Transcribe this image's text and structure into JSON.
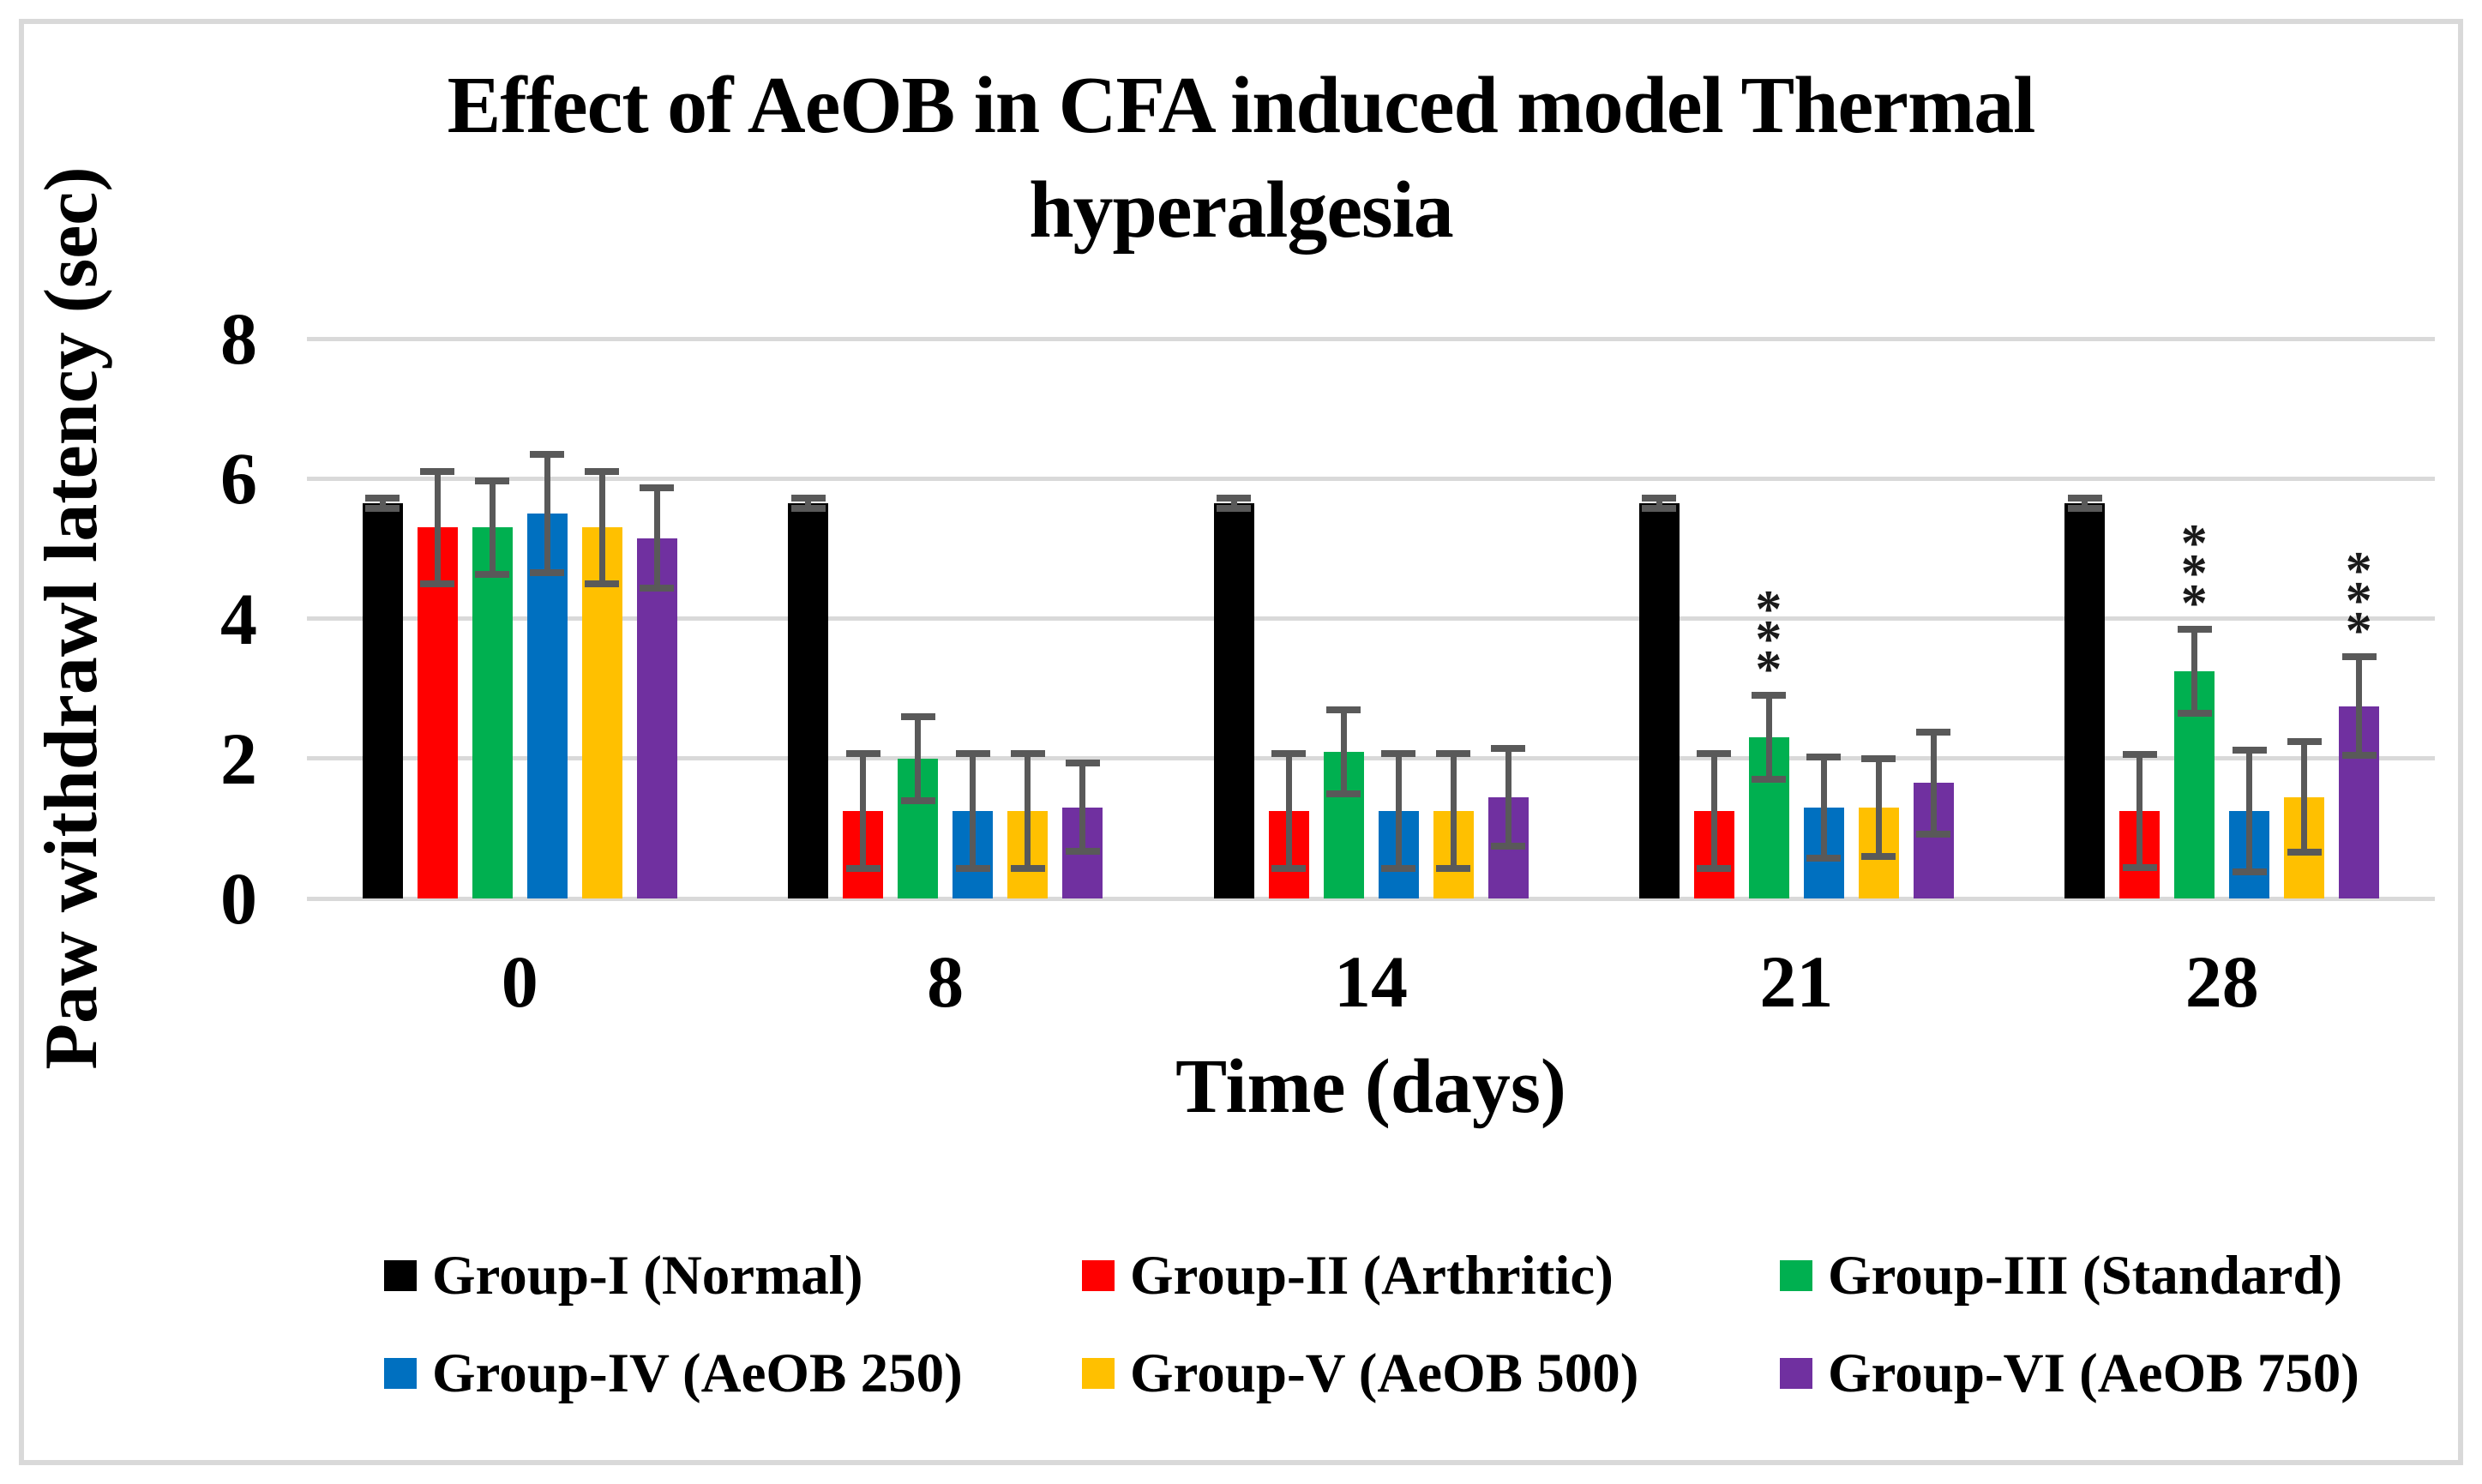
{
  "figure": {
    "title_line1": "Effect of AeOB in CFA induced model Thermal",
    "title_line2": "hyperalgesia",
    "y_axis_label": "Paw withdrawl latency (sec)",
    "x_axis_label": "Time (days)"
  },
  "colors": {
    "group1": "#000000",
    "group2": "#FF0000",
    "group3": "#00B050",
    "group4": "#0070C0",
    "group5": "#FFC000",
    "group6": "#7030A0",
    "error_bar": "#595959",
    "gridline": "#D9D9D9",
    "frame_border": "#D9D9D9",
    "significance": "#1A1A1A"
  },
  "chart_data": {
    "type": "bar",
    "title": "Effect of AeOB in CFA induced model Thermal hyperalgesia",
    "xlabel": "Time (days)",
    "ylabel": "Paw withdrawl latency (sec)",
    "ylim": [
      0,
      8
    ],
    "yticks": [
      0,
      2,
      4,
      6,
      8
    ],
    "categories": [
      "0",
      "8",
      "14",
      "21",
      "28"
    ],
    "grid": true,
    "legend_position": "bottom",
    "error_bars": true,
    "significance_symbol": "***",
    "series": [
      {
        "name": "Group-I (Normal)",
        "color": "#000000",
        "values": [
          5.65,
          5.65,
          5.65,
          5.65,
          5.65
        ],
        "errors": [
          0.07,
          0.07,
          0.07,
          0.07,
          0.07
        ],
        "sig": [
          "",
          "",
          "",
          "",
          ""
        ]
      },
      {
        "name": "Group-II (Arthritic)",
        "color": "#FF0000",
        "values": [
          5.3,
          1.25,
          1.25,
          1.25,
          1.25
        ],
        "errors": [
          0.8,
          0.82,
          0.82,
          0.82,
          0.81
        ],
        "sig": [
          "",
          "",
          "",
          "",
          ""
        ]
      },
      {
        "name": "Group-III (Standard)",
        "color": "#00B050",
        "values": [
          5.3,
          2.0,
          2.1,
          2.3,
          3.25
        ],
        "errors": [
          0.67,
          0.6,
          0.6,
          0.6,
          0.6
        ],
        "sig": [
          "",
          "",
          "",
          "***",
          "***"
        ]
      },
      {
        "name": "Group-IV (AeOB 250)",
        "color": "#0070C0",
        "values": [
          5.5,
          1.25,
          1.25,
          1.3,
          1.25
        ],
        "errors": [
          0.85,
          0.82,
          0.82,
          0.72,
          0.87
        ],
        "sig": [
          "",
          "",
          "",
          "",
          ""
        ]
      },
      {
        "name": "Group-V (AeOB 500)",
        "color": "#FFC000",
        "values": [
          5.3,
          1.25,
          1.25,
          1.3,
          1.45
        ],
        "errors": [
          0.8,
          0.82,
          0.82,
          0.7,
          0.79
        ],
        "sig": [
          "",
          "",
          "",
          "",
          ""
        ]
      },
      {
        "name": "Group-VI (AeOB 750)",
        "color": "#7030A0",
        "values": [
          5.15,
          1.3,
          1.45,
          1.65,
          2.75
        ],
        "errors": [
          0.72,
          0.63,
          0.7,
          0.73,
          0.7
        ],
        "sig": [
          "",
          "",
          "",
          "",
          "***"
        ]
      }
    ]
  }
}
